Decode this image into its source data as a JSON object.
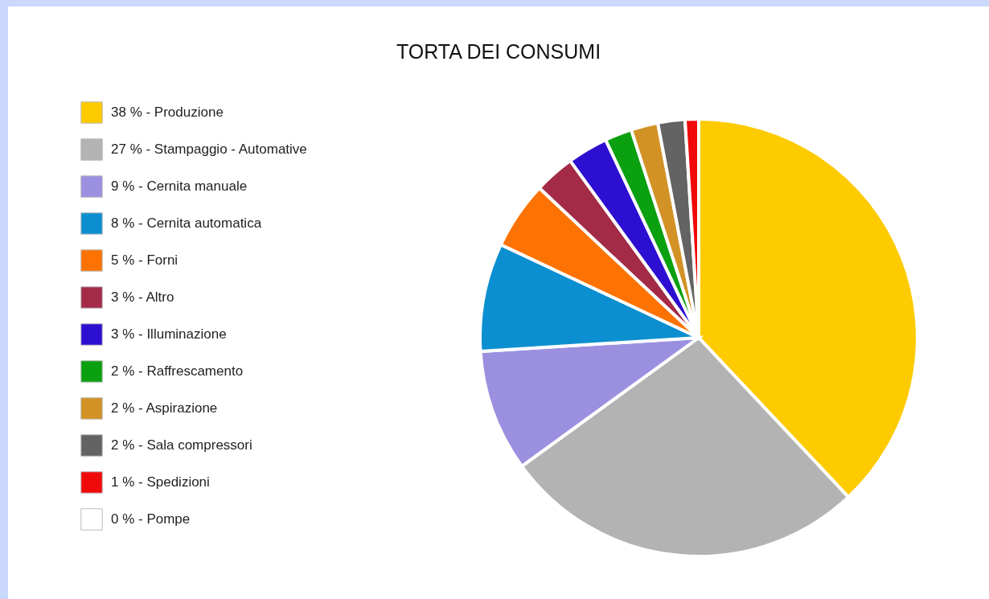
{
  "chart_data": {
    "type": "pie",
    "title": "TORTA DEI CONSUMI",
    "categories": [
      "Produzione",
      "Stampaggio - Automative",
      "Cernita manuale",
      "Cernita automatica",
      "Forni",
      "Altro",
      "Illuminazione",
      "Raffrescamento",
      "Aspirazione",
      "Sala compressori",
      "Spedizioni",
      "Pompe"
    ],
    "values": [
      38,
      27,
      9,
      8,
      5,
      3,
      3,
      2,
      2,
      2,
      1,
      0
    ],
    "value_labels": [
      "38 %",
      "27 %",
      "9 %",
      "8 %",
      "5 %",
      "3 %",
      "3 %",
      "2 %",
      "2 %",
      "2 %",
      "1 %",
      "0 %"
    ],
    "colors": [
      "#fdcb00",
      "#b3b3b3",
      "#9b90e0",
      "#0c8fd0",
      "#fd7303",
      "#a32b48",
      "#2d0fd1",
      "#0aa010",
      "#d39226",
      "#636363",
      "#f00a0a",
      "#ffffff"
    ],
    "legend": "left"
  }
}
